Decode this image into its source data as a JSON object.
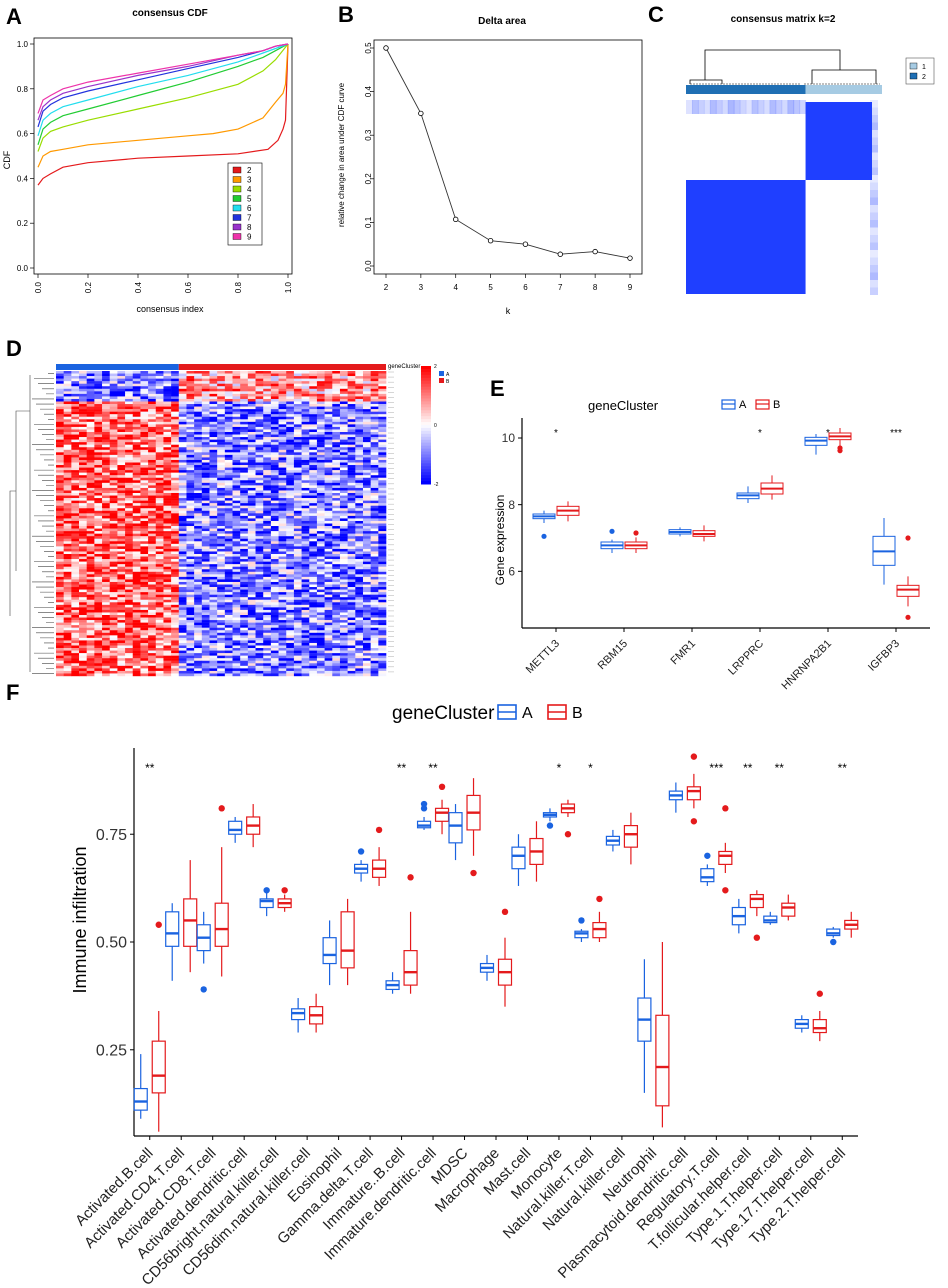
{
  "colors": {
    "A": "#1a63e0",
    "B": "#e41a1c",
    "heat_low": "#0000ff",
    "heat_high": "#ff0000",
    "cc_dark": "#1f6fb4",
    "cc_light": "#a6cbe3",
    "cm_blue": "#1f3fff"
  },
  "panels": {
    "A": "A",
    "B": "B",
    "C": "C",
    "D": "D",
    "E": "E",
    "F": "F"
  },
  "chart_data": [
    {
      "id": "A",
      "type": "line",
      "title": "consensus CDF",
      "xlabel": "consensus index",
      "ylabel": "CDF",
      "xlim": [
        0,
        1
      ],
      "ylim": [
        0,
        1
      ],
      "xticks": [
        "0.0",
        "0.2",
        "0.4",
        "0.6",
        "0.8",
        "1.0"
      ],
      "yticks": [
        "0.0",
        "0.2",
        "0.4",
        "0.6",
        "0.8",
        "1.0"
      ],
      "legend_position": "bottom-right",
      "series": [
        {
          "name": "2",
          "color": "#e41a1c",
          "x": [
            0,
            0.02,
            0.05,
            0.1,
            0.2,
            0.4,
            0.6,
            0.8,
            0.92,
            0.96,
            0.98,
            0.99,
            1.0
          ],
          "y": [
            0.37,
            0.4,
            0.42,
            0.45,
            0.47,
            0.49,
            0.5,
            0.51,
            0.53,
            0.57,
            0.62,
            0.66,
            1.0
          ]
        },
        {
          "name": "3",
          "color": "#ff9900",
          "x": [
            0,
            0.02,
            0.05,
            0.1,
            0.2,
            0.4,
            0.6,
            0.7,
            0.8,
            0.9,
            0.95,
            0.98,
            0.99,
            1.0
          ],
          "y": [
            0.45,
            0.5,
            0.52,
            0.53,
            0.55,
            0.57,
            0.59,
            0.6,
            0.62,
            0.67,
            0.74,
            0.78,
            0.82,
            1.0
          ]
        },
        {
          "name": "4",
          "color": "#99dd00",
          "x": [
            0,
            0.02,
            0.05,
            0.1,
            0.2,
            0.4,
            0.6,
            0.8,
            0.9,
            0.95,
            1.0
          ],
          "y": [
            0.52,
            0.58,
            0.61,
            0.63,
            0.66,
            0.71,
            0.76,
            0.82,
            0.88,
            0.93,
            1.0
          ]
        },
        {
          "name": "5",
          "color": "#22cc33",
          "x": [
            0,
            0.02,
            0.05,
            0.1,
            0.2,
            0.4,
            0.6,
            0.8,
            0.9,
            0.95,
            1.0
          ],
          "y": [
            0.55,
            0.62,
            0.65,
            0.68,
            0.71,
            0.77,
            0.83,
            0.9,
            0.94,
            0.97,
            1.0
          ]
        },
        {
          "name": "6",
          "color": "#22ddee",
          "x": [
            0,
            0.02,
            0.05,
            0.1,
            0.2,
            0.4,
            0.6,
            0.8,
            0.9,
            0.95,
            1.0
          ],
          "y": [
            0.59,
            0.66,
            0.69,
            0.72,
            0.75,
            0.81,
            0.86,
            0.92,
            0.96,
            0.98,
            1.0
          ]
        },
        {
          "name": "7",
          "color": "#2233dd",
          "x": [
            0,
            0.02,
            0.05,
            0.1,
            0.2,
            0.4,
            0.6,
            0.8,
            0.9,
            0.95,
            1.0
          ],
          "y": [
            0.63,
            0.7,
            0.73,
            0.76,
            0.79,
            0.84,
            0.89,
            0.94,
            0.97,
            0.99,
            1.0
          ]
        },
        {
          "name": "8",
          "color": "#9933cc",
          "x": [
            0,
            0.02,
            0.05,
            0.1,
            0.2,
            0.4,
            0.6,
            0.8,
            0.9,
            0.95,
            1.0
          ],
          "y": [
            0.66,
            0.72,
            0.75,
            0.78,
            0.81,
            0.86,
            0.9,
            0.95,
            0.97,
            0.99,
            1.0
          ]
        },
        {
          "name": "9",
          "color": "#ee33aa",
          "x": [
            0,
            0.02,
            0.05,
            0.1,
            0.2,
            0.4,
            0.6,
            0.8,
            0.9,
            0.95,
            1.0
          ],
          "y": [
            0.69,
            0.75,
            0.77,
            0.8,
            0.83,
            0.87,
            0.91,
            0.95,
            0.97,
            0.99,
            1.0
          ]
        }
      ]
    },
    {
      "id": "B",
      "type": "line",
      "title": "Delta area",
      "xlabel": "k",
      "ylabel": "relative change in area under CDF curve",
      "x": [
        2,
        3,
        4,
        5,
        6,
        7,
        8,
        9
      ],
      "y": [
        0.5,
        0.35,
        0.107,
        0.058,
        0.05,
        0.027,
        0.033,
        0.018
      ],
      "xlim": [
        2,
        9
      ],
      "ylim": [
        0,
        0.5
      ],
      "xticks": [
        "2",
        "3",
        "4",
        "5",
        "6",
        "7",
        "8",
        "9"
      ],
      "yticks": [
        "0.0",
        "0.1",
        "0.2",
        "0.3",
        "0.4",
        "0.5"
      ]
    },
    {
      "id": "C",
      "type": "heatmap",
      "title": "consensus matrix k=2",
      "legend": [
        "1",
        "2"
      ],
      "groups": [
        {
          "name": "2",
          "fraction": 0.61
        },
        {
          "name": "1",
          "fraction": 0.39
        }
      ]
    },
    {
      "id": "D",
      "type": "heatmap",
      "legend_title": "geneCluster",
      "legend": [
        "A",
        "B"
      ],
      "color_scale": {
        "min": -2,
        "max": 2,
        "ticks": [
          "2",
          "0",
          "-2"
        ]
      },
      "columns": {
        "A": 16,
        "B": 27
      },
      "rows": 120
    },
    {
      "id": "E",
      "type": "box",
      "legend_title": "geneCluster",
      "groups": [
        "A",
        "B"
      ],
      "ylabel": "Gene expression",
      "ylim": [
        4.3,
        10.6
      ],
      "yticks": [
        6,
        8,
        10
      ],
      "categories": [
        "METTL3",
        "RBM15",
        "FMR1",
        "LRPPRC",
        "HNRNPA2B1",
        "IGFBP3"
      ],
      "significance": [
        "*",
        "",
        "",
        "*",
        "*",
        "***"
      ],
      "boxes": {
        "A": [
          [
            7.45,
            7.58,
            7.65,
            7.72,
            7.82
          ],
          [
            6.55,
            6.68,
            6.78,
            6.88,
            6.95
          ],
          [
            7.05,
            7.12,
            7.18,
            7.25,
            7.32
          ],
          [
            8.05,
            8.18,
            8.28,
            8.35,
            8.55
          ],
          [
            9.5,
            9.78,
            9.92,
            10.02,
            10.12
          ],
          [
            5.6,
            6.18,
            6.6,
            7.05,
            7.6
          ]
        ],
        "B": [
          [
            7.5,
            7.68,
            7.82,
            7.95,
            8.1
          ],
          [
            6.55,
            6.68,
            6.78,
            6.88,
            7.02
          ],
          [
            6.9,
            7.05,
            7.12,
            7.22,
            7.38
          ],
          [
            8.15,
            8.32,
            8.48,
            8.65,
            8.88
          ],
          [
            9.75,
            9.95,
            10.05,
            10.15,
            10.3
          ],
          [
            4.95,
            5.25,
            5.45,
            5.58,
            5.85
          ]
        ]
      },
      "outliers": {
        "A": [
          [
            7.05
          ],
          [
            7.2
          ],
          [],
          [],
          [],
          []
        ],
        "B": [
          [],
          [
            7.15
          ],
          [],
          [],
          [
            9.7,
            9.62
          ],
          [
            7.0,
            4.62
          ]
        ]
      }
    },
    {
      "id": "F",
      "type": "box",
      "legend_title": "geneCluster",
      "groups": [
        "A",
        "B"
      ],
      "ylabel": "Immune infiltration",
      "ylim": [
        0.05,
        0.95
      ],
      "yticks": [
        "0.25",
        "0.50",
        "0.75"
      ],
      "categories": [
        "Activated.B.cell",
        "Activated.CD4.T.cell",
        "Activated.CD8.T.cell",
        "Activated.dendritic.cell",
        "CD56bright.natural.killer.cell",
        "CD56dim.natural.killer.cell",
        "Eosinophil",
        "Gamma.delta.T.cell",
        "Immature..B.cell",
        "Immature.dendritic.cell",
        "MDSC",
        "Macrophage",
        "Mast.cell",
        "Monocyte",
        "Natural.killer.T.cell",
        "Natural.killer.cell",
        "Neutrophil",
        "Plasmacytoid.dendritic.cell",
        "Regulatory.T.cell",
        "T.follicular.helper.cell",
        "Type.1.T.helper.cell",
        "Type.17.T.helper.cell",
        "Type.2.T.helper.cell"
      ],
      "significance": [
        "**",
        "",
        "",
        "",
        "",
        "",
        "",
        "",
        "**",
        "**",
        "",
        "",
        "",
        "*",
        "*",
        "",
        "",
        "",
        "***",
        "**",
        "**",
        "",
        "**"
      ],
      "boxes": {
        "A": [
          [
            0.09,
            0.11,
            0.13,
            0.16,
            0.24
          ],
          [
            0.41,
            0.49,
            0.52,
            0.57,
            0.59
          ],
          [
            0.45,
            0.48,
            0.51,
            0.54,
            0.57
          ],
          [
            0.73,
            0.75,
            0.76,
            0.78,
            0.79
          ],
          [
            0.56,
            0.58,
            0.595,
            0.6,
            0.62
          ],
          [
            0.29,
            0.32,
            0.335,
            0.345,
            0.37
          ],
          [
            0.4,
            0.45,
            0.47,
            0.51,
            0.55
          ],
          [
            0.64,
            0.66,
            0.67,
            0.68,
            0.69
          ],
          [
            0.38,
            0.39,
            0.4,
            0.41,
            0.43
          ],
          [
            0.76,
            0.765,
            0.77,
            0.78,
            0.79
          ],
          [
            0.69,
            0.73,
            0.77,
            0.8,
            0.82
          ],
          [
            0.41,
            0.43,
            0.44,
            0.45,
            0.47
          ],
          [
            0.63,
            0.67,
            0.7,
            0.72,
            0.75
          ],
          [
            0.78,
            0.79,
            0.795,
            0.8,
            0.81
          ],
          [
            0.5,
            0.51,
            0.52,
            0.525,
            0.53
          ],
          [
            0.71,
            0.725,
            0.735,
            0.745,
            0.76
          ],
          [
            0.15,
            0.27,
            0.32,
            0.37,
            0.46
          ],
          [
            0.8,
            0.83,
            0.84,
            0.85,
            0.87
          ],
          [
            0.63,
            0.64,
            0.65,
            0.67,
            0.68
          ],
          [
            0.52,
            0.54,
            0.56,
            0.58,
            0.6
          ],
          [
            0.54,
            0.545,
            0.55,
            0.56,
            0.57
          ],
          [
            0.29,
            0.3,
            0.31,
            0.32,
            0.33
          ],
          [
            0.51,
            0.515,
            0.52,
            0.53,
            0.535
          ]
        ],
        "B": [
          [
            0.06,
            0.15,
            0.19,
            0.27,
            0.34
          ],
          [
            0.43,
            0.49,
            0.55,
            0.6,
            0.69
          ],
          [
            0.42,
            0.49,
            0.53,
            0.59,
            0.72
          ],
          [
            0.72,
            0.75,
            0.77,
            0.79,
            0.82
          ],
          [
            0.57,
            0.58,
            0.59,
            0.6,
            0.61
          ],
          [
            0.29,
            0.31,
            0.33,
            0.35,
            0.38
          ],
          [
            0.4,
            0.44,
            0.48,
            0.57,
            0.6
          ],
          [
            0.63,
            0.65,
            0.67,
            0.69,
            0.72
          ],
          [
            0.38,
            0.4,
            0.43,
            0.48,
            0.57
          ],
          [
            0.75,
            0.78,
            0.8,
            0.81,
            0.83
          ],
          [
            0.7,
            0.76,
            0.8,
            0.84,
            0.88
          ],
          [
            0.35,
            0.4,
            0.43,
            0.46,
            0.51
          ],
          [
            0.64,
            0.68,
            0.71,
            0.74,
            0.78
          ],
          [
            0.79,
            0.8,
            0.81,
            0.82,
            0.83
          ],
          [
            0.5,
            0.51,
            0.53,
            0.545,
            0.57
          ],
          [
            0.68,
            0.72,
            0.75,
            0.77,
            0.8
          ],
          [
            0.07,
            0.12,
            0.21,
            0.33,
            0.5
          ],
          [
            0.81,
            0.83,
            0.85,
            0.86,
            0.89
          ],
          [
            0.66,
            0.68,
            0.7,
            0.71,
            0.73
          ],
          [
            0.56,
            0.58,
            0.6,
            0.61,
            0.62
          ],
          [
            0.55,
            0.56,
            0.58,
            0.59,
            0.61
          ],
          [
            0.27,
            0.29,
            0.3,
            0.32,
            0.34
          ],
          [
            0.51,
            0.53,
            0.54,
            0.55,
            0.57
          ]
        ]
      },
      "outliers": {
        "A": [
          [],
          [],
          [
            0.39
          ],
          [],
          [
            0.62
          ],
          [],
          [],
          [
            0.71
          ],
          [],
          [
            0.82,
            0.81
          ],
          [],
          [],
          [],
          [
            0.77
          ],
          [
            0.55
          ],
          [],
          [],
          [],
          [
            0.7
          ],
          [],
          [],
          [],
          [
            0.5
          ]
        ],
        "B": [
          [
            0.54
          ],
          [],
          [
            0.81
          ],
          [],
          [
            0.62
          ],
          [],
          [],
          [
            0.76
          ],
          [
            0.65
          ],
          [
            0.86
          ],
          [
            0.66
          ],
          [
            0.57
          ],
          [],
          [
            0.75
          ],
          [
            0.6
          ],
          [],
          [],
          [
            0.93,
            0.78
          ],
          [
            0.81,
            0.62
          ],
          [
            0.51
          ],
          [],
          [
            0.38
          ],
          []
        ]
      }
    }
  ]
}
